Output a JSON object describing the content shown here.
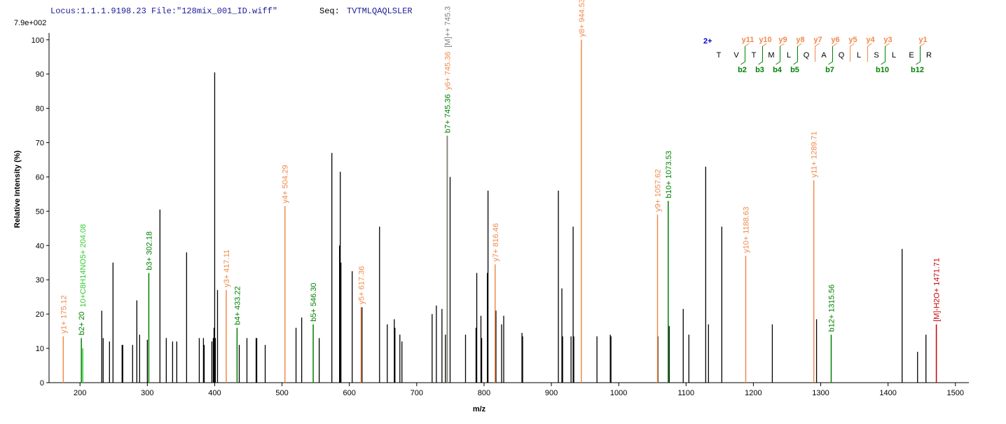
{
  "header": {
    "locus_file": "Locus:1.1.1.9198.23 File:\"128mix_001_ID.wiff\"",
    "seq_label": "Seq:",
    "seq": "TVTMLQAQLSLER"
  },
  "sequence": {
    "charge": "2+",
    "residues": [
      "T",
      "V",
      "T",
      "M",
      "L",
      "Q",
      "A",
      "Q",
      "L",
      "S",
      "L",
      "E",
      "R"
    ],
    "y_ions": [
      null,
      "y11",
      "y10",
      "y9",
      "y8",
      "y7",
      "y6",
      "y5",
      "y4",
      "y3",
      null,
      "y1"
    ],
    "b_ions": [
      null,
      "b2",
      "b3",
      "b4",
      "b5",
      null,
      "b7",
      null,
      null,
      "b10",
      null,
      "b12"
    ]
  },
  "chart_data": {
    "type": "spectrum",
    "max_intensity_label": "7.9e+002",
    "xlabel": "m/z",
    "ylabel": "Relative   Intensity (%)",
    "xlim": [
      154,
      1520
    ],
    "ylim": [
      0,
      102
    ],
    "xticks": [
      200,
      300,
      400,
      500,
      600,
      700,
      800,
      900,
      1000,
      1100,
      1200,
      1300,
      1400,
      1500
    ],
    "yticks": [
      0,
      10,
      20,
      30,
      40,
      50,
      60,
      70,
      80,
      90,
      100
    ],
    "series": [
      {
        "color": "#000000",
        "x": [
          232.3,
          234.4,
          243.8,
          249.0,
          262.5,
          263.5,
          278.1,
          284.4,
          288.5,
          300.0,
          318.7,
          328.1,
          337.5,
          343.7,
          358.3,
          377.1,
          383.3,
          384.4,
          395.8,
          397.9,
          399.0,
          400.0,
          401.0,
          404.2,
          436.5,
          447.9,
          461.5,
          462.5,
          475.0,
          520.8,
          529.2,
          555.2,
          574.0,
          585.4,
          586.5,
          587.5,
          604.2,
          618.8,
          644.8,
          656.3,
          666.7,
          667.7,
          675.0,
          678.1,
          722.9,
          729.2,
          737.5,
          742.7,
          749.6,
          772.5,
          788.1,
          789.2,
          795.4,
          796.5,
          804.9,
          805.9,
          817.7,
          826.1,
          829.2,
          856.3,
          857.3,
          910.4,
          915.6,
          916.7,
          929.2,
          932.3,
          933.3,
          967.7,
          987.5,
          988.5,
          1058.3,
          1075.0,
          1095.8,
          1104.2,
          1129.2,
          1133.3,
          1153.1,
          1228.1,
          1293.8,
          1420.9,
          1443.8,
          1456.3
        ],
        "values": [
          21,
          13,
          12,
          35,
          11,
          11,
          11,
          24,
          14,
          12.5,
          50.5,
          13,
          12,
          12,
          38,
          13,
          13,
          11,
          12,
          13,
          16,
          90.5,
          13,
          27,
          11,
          13,
          13,
          13,
          11,
          16,
          19,
          13,
          67,
          40,
          61.5,
          35,
          32.5,
          22,
          45.5,
          17,
          18.5,
          16,
          14,
          12,
          20,
          22.5,
          21.5,
          14,
          60,
          14,
          16,
          32,
          19.5,
          13,
          32,
          56,
          21,
          17,
          19.5,
          14.5,
          13.5,
          56,
          27.5,
          13.5,
          13.5,
          45.5,
          13.5,
          13.5,
          14,
          13.5,
          13.5,
          16.5,
          21.5,
          14,
          63,
          17,
          45.5,
          17,
          18.5,
          39,
          9,
          14
        ]
      }
    ],
    "annotations": [
      {
        "label": "y1+ 175.12",
        "x": 175.12,
        "value": 13.5,
        "color": "#f08a4b"
      },
      {
        "label": "b2+ 20",
        "x": 202.0,
        "value": 13,
        "color": "#008000"
      },
      {
        "label": "10+C8H14NO5+ 204.08",
        "x": 204.08,
        "value": 10,
        "color": "#33cc33"
      },
      {
        "label": "b3+ 302.18",
        "x": 302.18,
        "value": 32,
        "color": "#008000"
      },
      {
        "label": "y3+ 417.11",
        "x": 417.11,
        "value": 27,
        "color": "#f08a4b"
      },
      {
        "label": "b4+ 433.22",
        "x": 433.22,
        "value": 16,
        "color": "#008000"
      },
      {
        "label": "y4+ 504.29",
        "x": 504.29,
        "value": 51.5,
        "color": "#f08a4b"
      },
      {
        "label": "b5+ 546.30",
        "x": 546.3,
        "value": 17,
        "color": "#008000"
      },
      {
        "label": "y5+ 617.36",
        "x": 617.36,
        "value": 22,
        "color": "#f08a4b"
      },
      {
        "label": "b7+ 745.36",
        "x": 745.36,
        "value": 72,
        "color": "#008000"
      },
      {
        "label": "y6+ 745.36",
        "x": 745.36,
        "value": 72,
        "color": "#f08a4b"
      },
      {
        "label": "[M]++ 745.3",
        "x": 745.36,
        "value": 72,
        "color": "#808080"
      },
      {
        "label": "y7+ 816.46",
        "x": 816.46,
        "value": 34.5,
        "color": "#f08a4b"
      },
      {
        "label": "y8+ 944.53",
        "x": 944.53,
        "value": 100,
        "color": "#f08a4b"
      },
      {
        "label": "y9+ 1057.62",
        "x": 1057.62,
        "value": 49,
        "color": "#f08a4b"
      },
      {
        "label": "b10+ 1073.53",
        "x": 1073.53,
        "value": 53,
        "color": "#008000"
      },
      {
        "label": "y10+ 1188.63",
        "x": 1188.63,
        "value": 37,
        "color": "#f08a4b"
      },
      {
        "label": "y11+ 1289.71",
        "x": 1289.71,
        "value": 59,
        "color": "#f08a4b"
      },
      {
        "label": "b12+ 1315.56",
        "x": 1315.56,
        "value": 14,
        "color": "#008000"
      },
      {
        "label": "[M]-H2O+ 1471.71",
        "x": 1471.71,
        "value": 17,
        "color": "#cc0000"
      }
    ]
  }
}
